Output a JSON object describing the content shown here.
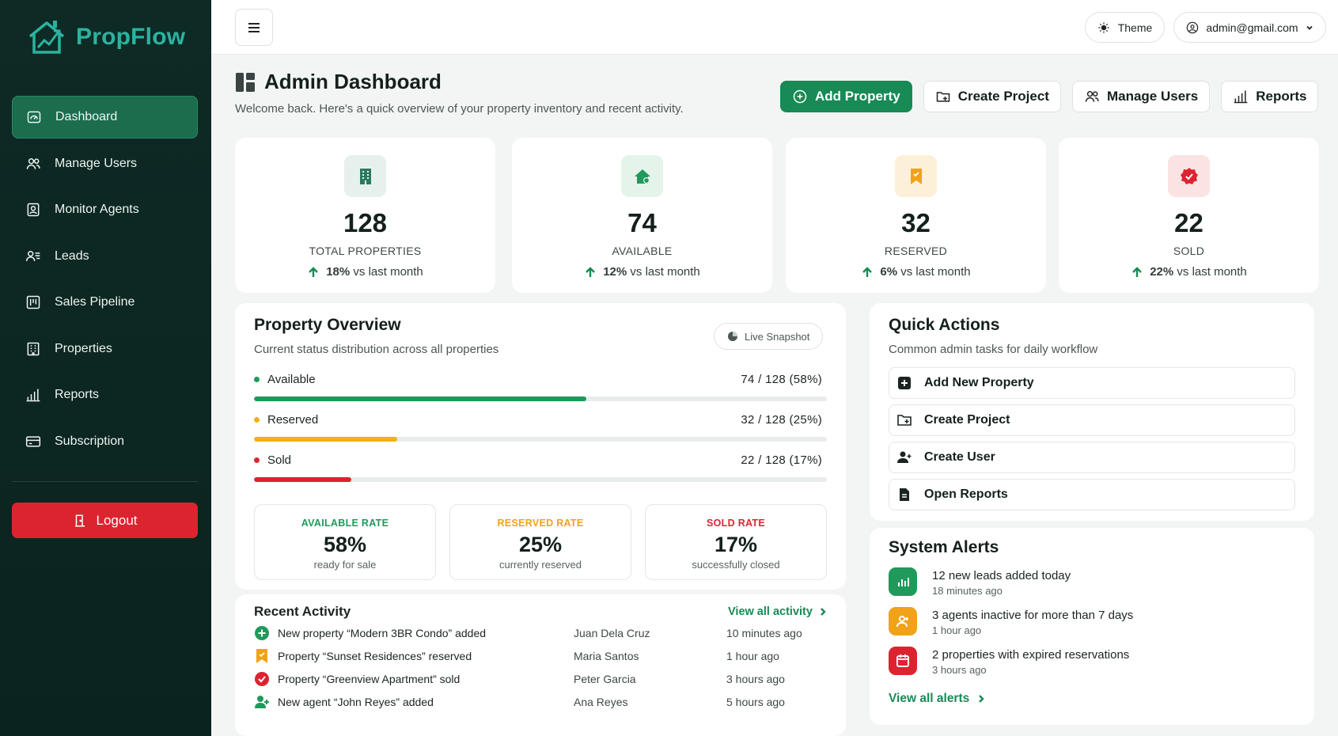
{
  "brand": {
    "name": "PropFlow"
  },
  "sidebar": {
    "items": [
      {
        "label": "Dashboard",
        "icon": "dashboard-icon",
        "active": true
      },
      {
        "label": "Manage Users",
        "icon": "users-icon"
      },
      {
        "label": "Monitor Agents",
        "icon": "id-badge-icon"
      },
      {
        "label": "Leads",
        "icon": "user-list-icon"
      },
      {
        "label": "Sales Pipeline",
        "icon": "pipeline-icon"
      },
      {
        "label": "Properties",
        "icon": "building-icon"
      },
      {
        "label": "Reports",
        "icon": "bar-chart-icon"
      },
      {
        "label": "Subscription",
        "icon": "card-icon"
      }
    ],
    "logout_label": "Logout"
  },
  "topbar": {
    "theme_label": "Theme",
    "user_email": "admin@gmail.com"
  },
  "header": {
    "title": "Admin Dashboard",
    "subtitle": "Welcome back. Here's a quick overview of your property inventory and recent activity.",
    "actions": [
      {
        "label": "Add Property",
        "icon": "plus-circle-icon",
        "primary": true
      },
      {
        "label": "Create Project",
        "icon": "folder-plus-icon"
      },
      {
        "label": "Manage Users",
        "icon": "users-icon"
      },
      {
        "label": "Reports",
        "icon": "bar-chart-icon"
      }
    ]
  },
  "stats": [
    {
      "value": "128",
      "label": "TOTAL PROPERTIES",
      "trend_pct": "18%",
      "trend_text": "vs last month",
      "icon": "building-icon",
      "color": "#2b7a5e"
    },
    {
      "value": "74",
      "label": "AVAILABLE",
      "trend_pct": "12%",
      "trend_text": "vs last month",
      "icon": "house-icon",
      "color": "#1f9a5a"
    },
    {
      "value": "32",
      "label": "RESERVED",
      "trend_pct": "6%",
      "trend_text": "vs last month",
      "icon": "bookmark-icon",
      "color": "#f2a21a"
    },
    {
      "value": "22",
      "label": "SOLD",
      "trend_pct": "22%",
      "trend_text": "vs last month",
      "icon": "seal-check-icon",
      "color": "#dc2430"
    }
  ],
  "overview": {
    "title": "Property Overview",
    "description": "Current status distribution across all properties",
    "live_label": "Live Snapshot",
    "rows": [
      {
        "name": "Available",
        "value_text": "74  /  128  (58%)",
        "fraction": 0.58,
        "color": "#1f9a5a"
      },
      {
        "name": "Reserved",
        "value_text": "32  /  128  (25%)",
        "fraction": 0.25,
        "color": "#f2b11a"
      },
      {
        "name": "Sold",
        "value_text": "22  /  128  (17%)",
        "fraction": 0.17,
        "color": "#dc2430"
      }
    ],
    "rates": [
      {
        "label": "AVAILABLE RATE",
        "value": "58%",
        "sub": "ready for sale",
        "color": "#1f9a5a"
      },
      {
        "label": "RESERVED RATE",
        "value": "25%",
        "sub": "currently reserved",
        "color": "#f2a21a"
      },
      {
        "label": "SOLD RATE",
        "value": "17%",
        "sub": "successfully closed",
        "color": "#dc2430"
      }
    ]
  },
  "activity": {
    "title": "Recent Activity",
    "view_all": "View all activity",
    "rows": [
      {
        "text": "New property “Modern 3BR Condo” added",
        "user": "Juan Dela Cruz",
        "time": "10 minutes ago",
        "icon": "plus-circle-icon"
      },
      {
        "text": "Property “Sunset Residences” reserved",
        "user": "Maria Santos",
        "time": "1 hour ago",
        "icon": "bookmark-icon"
      },
      {
        "text": "Property “Greenview Apartment” sold",
        "user": "Peter Garcia",
        "time": "3 hours ago",
        "icon": "seal-check-icon"
      },
      {
        "text": "New agent “John Reyes” added",
        "user": "Ana Reyes",
        "time": "5 hours ago",
        "icon": "user-plus-icon"
      }
    ]
  },
  "quick_actions": {
    "title": "Quick Actions",
    "description": "Common admin tasks for daily workflow",
    "items": [
      {
        "label": "Add New Property",
        "icon": "plus-square-icon"
      },
      {
        "label": "Create Project",
        "icon": "folder-plus-icon"
      },
      {
        "label": "Create User",
        "icon": "user-plus-icon"
      },
      {
        "label": "Open Reports",
        "icon": "file-icon"
      }
    ]
  },
  "alerts": {
    "title": "System Alerts",
    "items": [
      {
        "text": "12 new leads added today",
        "time": "18 minutes ago",
        "icon": "chart-icon",
        "color": "#1f9a5a"
      },
      {
        "text": "3 agents inactive for more than 7 days",
        "time": "1 hour ago",
        "icon": "user-icon",
        "color": "#f2a21a"
      },
      {
        "text": "2 properties with expired reservations",
        "time": "3 hours ago",
        "icon": "calendar-icon",
        "color": "#dc2430"
      }
    ],
    "view_all": "View all alerts"
  }
}
